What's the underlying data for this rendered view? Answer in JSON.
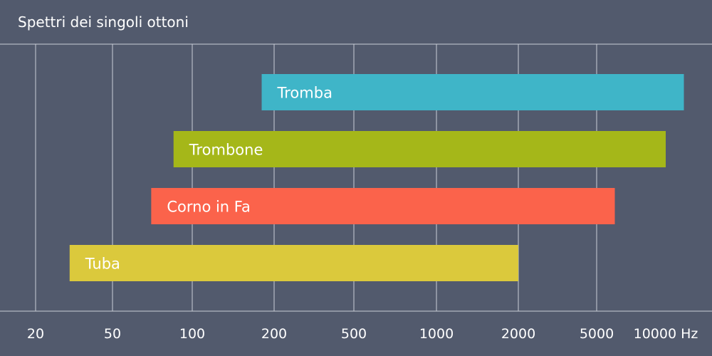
{
  "chart_data": {
    "type": "bar",
    "orientation": "horizontal-range",
    "title": "Spettri dei singoli ottoni",
    "xlabel": "",
    "ylabel": "",
    "x_scale": "log",
    "x_ticks": [
      20,
      50,
      100,
      200,
      500,
      1000,
      2000,
      5000,
      10000
    ],
    "x_tick_labels": [
      "20",
      "50",
      "100",
      "200",
      "500",
      "1000",
      "2000",
      "5000",
      "10000 Hz"
    ],
    "grid": true,
    "series": [
      {
        "name": "Tromba",
        "min": 180,
        "max": 12000,
        "color": "#3fb5c8"
      },
      {
        "name": "Trombone",
        "min": 85,
        "max": 10000,
        "color": "#a5b719"
      },
      {
        "name": "Corno in Fa",
        "min": 70,
        "max": 6000,
        "color": "#fb634b"
      },
      {
        "name": "Tuba",
        "min": 30,
        "max": 2000,
        "color": "#dbc93c"
      }
    ],
    "colors": {
      "background": "#525a6d",
      "grid": "#c9cdd6",
      "text": "#ffffff"
    }
  }
}
